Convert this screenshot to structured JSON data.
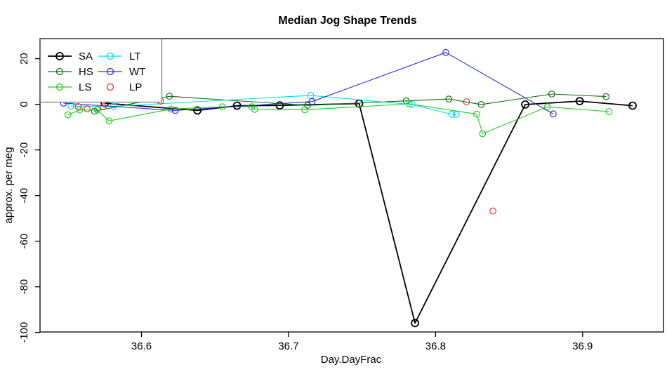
{
  "title": "Median Jog Shape Trends",
  "chart_data": {
    "type": "line",
    "title": "Median Jog Shape Trends",
    "xlabel": "Day.DayFrac",
    "ylabel": "approx. per meg",
    "xlim": [
      36.531,
      36.955
    ],
    "ylim": [
      -99.8,
      28.8
    ],
    "xticks": [
      36.6,
      36.7,
      36.8,
      36.9
    ],
    "yticks": [
      20,
      0,
      -20,
      -40,
      -60,
      -80,
      -100
    ],
    "grid": false,
    "legend_position": "top-left",
    "point_style": "open-circle",
    "series": [
      {
        "name": "SA",
        "color": "#000000",
        "line": true,
        "width": 1.8,
        "points": [
          [
            36.575,
            0.5
          ],
          [
            36.638,
            -2.7
          ],
          [
            36.665,
            -0.6
          ],
          [
            36.694,
            -0.5
          ],
          [
            36.748,
            0.3
          ],
          [
            36.786,
            -95.9
          ],
          [
            36.861,
            -0.1
          ],
          [
            36.898,
            1.4
          ],
          [
            36.934,
            -0.6
          ]
        ]
      },
      {
        "name": "HS",
        "color": "#146E14",
        "line": true,
        "width": 1.1,
        "points": [
          [
            36.568,
            -3.0
          ],
          [
            36.619,
            3.5
          ],
          [
            36.713,
            -0.5
          ],
          [
            36.78,
            1.5
          ],
          [
            36.809,
            2.3
          ],
          [
            36.831,
            -0.1
          ],
          [
            36.879,
            4.5
          ],
          [
            36.916,
            3.4
          ]
        ]
      },
      {
        "name": "LS",
        "color": "#21CC21",
        "line": true,
        "width": 1.1,
        "points": [
          [
            36.55,
            -4.6
          ],
          [
            36.558,
            -2.5
          ],
          [
            36.57,
            -2.5
          ],
          [
            36.578,
            -7.3
          ],
          [
            36.62,
            -2.1
          ],
          [
            36.655,
            -1.1
          ],
          [
            36.675,
            -1.1
          ],
          [
            36.677,
            -2.2
          ],
          [
            36.711,
            -2.4
          ],
          [
            36.782,
            0.2
          ],
          [
            36.828,
            -4.3
          ],
          [
            36.832,
            -12.9
          ],
          [
            36.876,
            -1.1
          ],
          [
            36.918,
            -3.2
          ]
        ]
      },
      {
        "name": "LT",
        "color": "#00E1E1",
        "line": true,
        "width": 1.1,
        "points": [
          [
            36.552,
            -0.8
          ],
          [
            36.581,
            -0.9
          ],
          [
            36.715,
            3.9
          ],
          [
            36.784,
            -0.1
          ],
          [
            36.811,
            -4.4
          ],
          [
            36.814,
            -4.5
          ]
        ]
      },
      {
        "name": "WT",
        "color": "#2A2ADF",
        "line": true,
        "width": 1.1,
        "points": [
          [
            36.547,
            0.5
          ],
          [
            36.623,
            -2.7
          ],
          [
            36.716,
            1.2
          ],
          [
            36.807,
            22.7
          ],
          [
            36.88,
            -4.2
          ]
        ]
      },
      {
        "name": "LP",
        "color": "#EA3323",
        "line": false,
        "width": 1.1,
        "points": [
          [
            36.557,
            -1.0
          ],
          [
            36.563,
            -2.0
          ],
          [
            36.574,
            -1.1
          ],
          [
            36.613,
            1.4
          ],
          [
            36.821,
            1.1
          ],
          [
            36.839,
            -46.8
          ]
        ]
      }
    ],
    "legend_border_color": "#777777"
  }
}
